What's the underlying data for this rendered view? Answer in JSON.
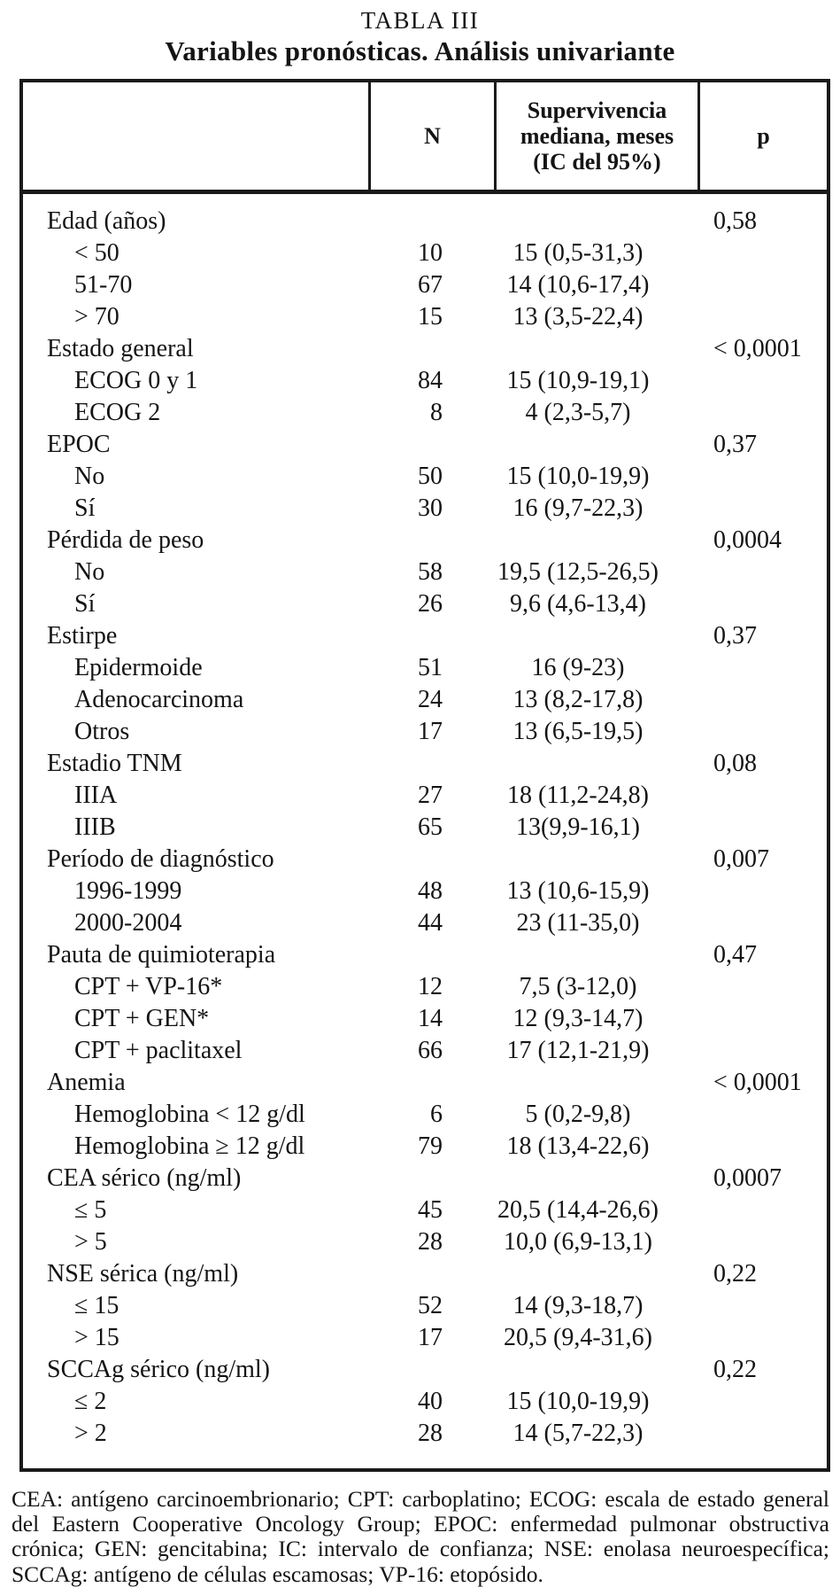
{
  "title": "TABLA III",
  "subtitle": "Variables pronósticas. Análisis univariante",
  "header": {
    "variable": "",
    "n": "N",
    "survival": "Supervivencia\nmediana, meses\n(IC del 95%)",
    "p": "p"
  },
  "rows": [
    {
      "label": "Edad (años)",
      "indent": false,
      "n": "",
      "survival": "",
      "p": "0,58"
    },
    {
      "label": "< 50",
      "indent": true,
      "n": "10",
      "survival": "15 (0,5-31,3)",
      "p": ""
    },
    {
      "label": "51-70",
      "indent": true,
      "n": "67",
      "survival": "14 (10,6-17,4)",
      "p": ""
    },
    {
      "label": "> 70",
      "indent": true,
      "n": "15",
      "survival": "13 (3,5-22,4)",
      "p": ""
    },
    {
      "label": "Estado general",
      "indent": false,
      "n": "",
      "survival": "",
      "p": "< 0,0001"
    },
    {
      "label": "ECOG 0 y 1",
      "indent": true,
      "n": "84",
      "survival": "15 (10,9-19,1)",
      "p": ""
    },
    {
      "label": "ECOG 2",
      "indent": true,
      "n": "8",
      "survival": "4 (2,3-5,7)",
      "p": ""
    },
    {
      "label": "EPOC",
      "indent": false,
      "n": "",
      "survival": "",
      "p": "0,37"
    },
    {
      "label": "No",
      "indent": true,
      "n": "50",
      "survival": "15 (10,0-19,9)",
      "p": ""
    },
    {
      "label": "Sí",
      "indent": true,
      "n": "30",
      "survival": "16 (9,7-22,3)",
      "p": ""
    },
    {
      "label": "Pérdida de peso",
      "indent": false,
      "n": "",
      "survival": "",
      "p": "0,0004"
    },
    {
      "label": "No",
      "indent": true,
      "n": "58",
      "survival": "19,5 (12,5-26,5)",
      "p": ""
    },
    {
      "label": "Sí",
      "indent": true,
      "n": "26",
      "survival": "9,6 (4,6-13,4)",
      "p": ""
    },
    {
      "label": "Estirpe",
      "indent": false,
      "n": "",
      "survival": "",
      "p": "0,37"
    },
    {
      "label": "Epidermoide",
      "indent": true,
      "n": "51",
      "survival": "16 (9-23)",
      "p": ""
    },
    {
      "label": "Adenocarcinoma",
      "indent": true,
      "n": "24",
      "survival": "13 (8,2-17,8)",
      "p": ""
    },
    {
      "label": "Otros",
      "indent": true,
      "n": "17",
      "survival": "13 (6,5-19,5)",
      "p": ""
    },
    {
      "label": "Estadio TNM",
      "indent": false,
      "n": "",
      "survival": "",
      "p": "0,08"
    },
    {
      "label": "IIIA",
      "indent": true,
      "n": "27",
      "survival": "18 (11,2-24,8)",
      "p": ""
    },
    {
      "label": "IIIB",
      "indent": true,
      "n": "65",
      "survival": "13(9,9-16,1)",
      "p": ""
    },
    {
      "label": "Período de diagnóstico",
      "indent": false,
      "n": "",
      "survival": "",
      "p": "0,007"
    },
    {
      "label": "1996-1999",
      "indent": true,
      "n": "48",
      "survival": "13 (10,6-15,9)",
      "p": ""
    },
    {
      "label": "2000-2004",
      "indent": true,
      "n": "44",
      "survival": "23 (11-35,0)",
      "p": ""
    },
    {
      "label": "Pauta de quimioterapia",
      "indent": false,
      "n": "",
      "survival": "",
      "p": "0,47"
    },
    {
      "label": "CPT + VP-16*",
      "indent": true,
      "n": "12",
      "survival": "7,5 (3-12,0)",
      "p": ""
    },
    {
      "label": "CPT + GEN*",
      "indent": true,
      "n": "14",
      "survival": "12 (9,3-14,7)",
      "p": ""
    },
    {
      "label": "CPT + paclitaxel",
      "indent": true,
      "n": "66",
      "survival": "17 (12,1-21,9)",
      "p": ""
    },
    {
      "label": "Anemia",
      "indent": false,
      "n": "",
      "survival": "",
      "p": "< 0,0001"
    },
    {
      "label": "Hemoglobina < 12 g/dl",
      "indent": true,
      "n": "6",
      "survival": "5 (0,2-9,8)",
      "p": ""
    },
    {
      "label": "Hemoglobina ≥ 12 g/dl",
      "indent": true,
      "n": "79",
      "survival": "18 (13,4-22,6)",
      "p": ""
    },
    {
      "label": "CEA sérico (ng/ml)",
      "indent": false,
      "n": "",
      "survival": "",
      "p": "0,0007"
    },
    {
      "label": "≤ 5",
      "indent": true,
      "n": "45",
      "survival": "20,5 (14,4-26,6)",
      "p": ""
    },
    {
      "label": "> 5",
      "indent": true,
      "n": "28",
      "survival": "10,0 (6,9-13,1)",
      "p": ""
    },
    {
      "label": "NSE sérica (ng/ml)",
      "indent": false,
      "n": "",
      "survival": "",
      "p": "0,22"
    },
    {
      "label": "≤ 15",
      "indent": true,
      "n": "52",
      "survival": "14 (9,3-18,7)",
      "p": ""
    },
    {
      "label": "> 15",
      "indent": true,
      "n": "17",
      "survival": "20,5 (9,4-31,6)",
      "p": ""
    },
    {
      "label": "SCCAg sérico (ng/ml)",
      "indent": false,
      "n": "",
      "survival": "",
      "p": "0,22"
    },
    {
      "label": "≤ 2",
      "indent": true,
      "n": "40",
      "survival": "15 (10,0-19,9)",
      "p": ""
    },
    {
      "label": "> 2",
      "indent": true,
      "n": "28",
      "survival": "14 (5,7-22,3)",
      "p": ""
    }
  ],
  "footnote": "CEA: antígeno carcinoembrionario; CPT: carboplatino; ECOG: escala de estado general del Eastern Cooperative Oncology Group; EPOC: enfermedad pulmonar obstructiva crónica; GEN: gencitabina; IC: intervalo de confianza; NSE: enolasa neuroespecífica; SCCAg: antígeno de células escamosas; VP-16: etopósido.",
  "colors": {
    "background": "#ffffff",
    "text": "#141414",
    "border": "#1a1a1a"
  }
}
